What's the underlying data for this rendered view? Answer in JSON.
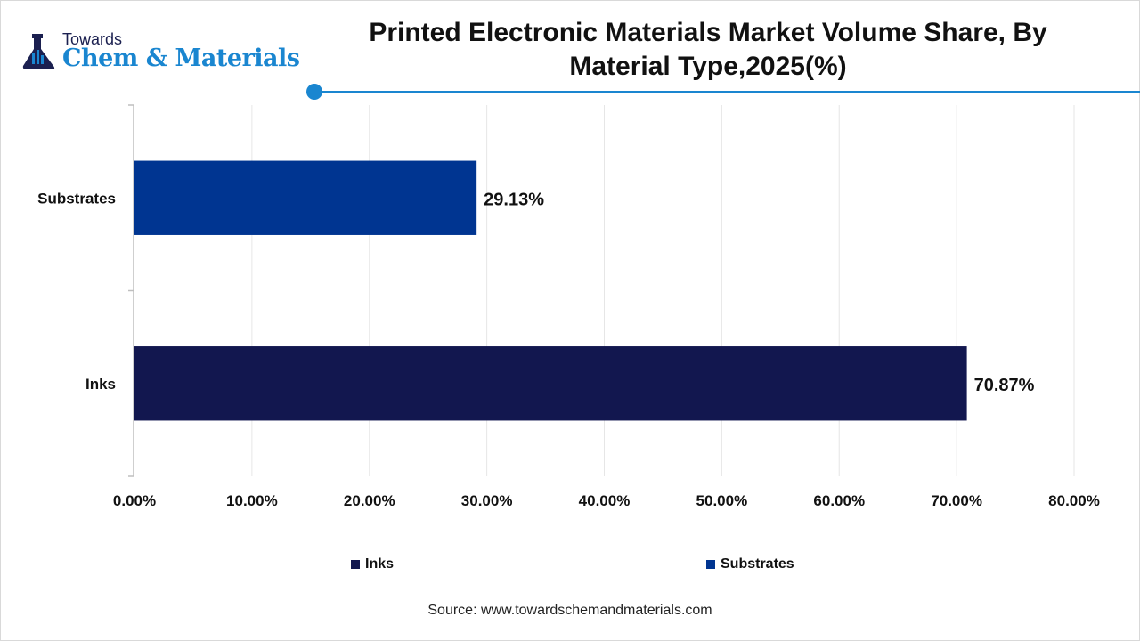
{
  "logo": {
    "top": "Towards",
    "main": "Chem & Materials"
  },
  "title": "Printed Electronic Materials Market Volume Share, By Material Type,2025(%)",
  "chart_data": {
    "type": "bar",
    "orientation": "horizontal",
    "title": "Printed Electronic Materials Market Volume Share, By Material Type,2025(%)",
    "categories": [
      "Substrates",
      "Inks"
    ],
    "values": [
      29.13,
      70.87
    ],
    "data_labels": [
      "29.13%",
      "70.87%"
    ],
    "colors": [
      "#003591",
      "#12174f"
    ],
    "xlim": [
      0,
      80
    ],
    "x_ticks": [
      "0.00%",
      "10.00%",
      "20.00%",
      "30.00%",
      "40.00%",
      "50.00%",
      "60.00%",
      "70.00%",
      "80.00%"
    ],
    "grid": true,
    "legend": {
      "position": "bottom",
      "entries": [
        {
          "label": "Inks",
          "color": "#12174f"
        },
        {
          "label": "Substrates",
          "color": "#003591"
        }
      ]
    }
  },
  "source": "Source: www.towardschemandmaterials.com"
}
